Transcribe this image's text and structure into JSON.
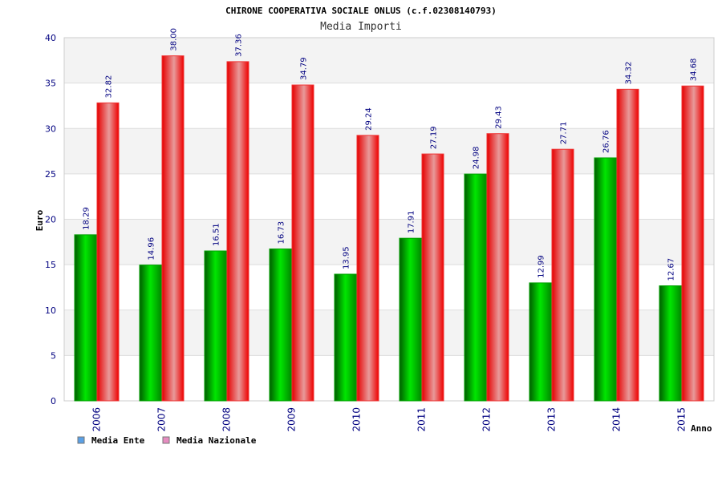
{
  "chart_data": {
    "type": "bar",
    "title": "CHIRONE COOPERATIVA SOCIALE ONLUS (c.f.02308140793)",
    "subtitle": "Media Importi",
    "xlabel": "Anno",
    "ylabel": "Euro",
    "ylim": [
      0,
      40
    ],
    "yticks": [
      0,
      5,
      10,
      15,
      20,
      25,
      30,
      35,
      40
    ],
    "categories": [
      "2006",
      "2007",
      "2008",
      "2009",
      "2010",
      "2011",
      "2012",
      "2013",
      "2014",
      "2015"
    ],
    "series": [
      {
        "name": "Media Ente",
        "color": "#00b800",
        "legend_color": "#5aa0e6",
        "values": [
          18.29,
          14.96,
          16.51,
          16.73,
          13.95,
          17.91,
          24.98,
          12.99,
          26.76,
          12.67
        ],
        "labels": [
          "18.29",
          "14.96",
          "16.51",
          "16.73",
          "13.95",
          "17.91",
          "24.98",
          "12.99",
          "26.76",
          "12.67"
        ]
      },
      {
        "name": "Media Nazionale",
        "color": "#ff0000",
        "legend_color": "#e68cc0",
        "values": [
          32.82,
          38.0,
          37.36,
          34.79,
          29.24,
          27.19,
          29.43,
          27.71,
          34.32,
          34.68
        ],
        "labels": [
          "32.82",
          "38.00",
          "37.36",
          "34.79",
          "29.24",
          "27.19",
          "29.43",
          "27.71",
          "34.32",
          "34.68"
        ]
      }
    ],
    "grid": true,
    "legend_position": "bottom-left"
  }
}
